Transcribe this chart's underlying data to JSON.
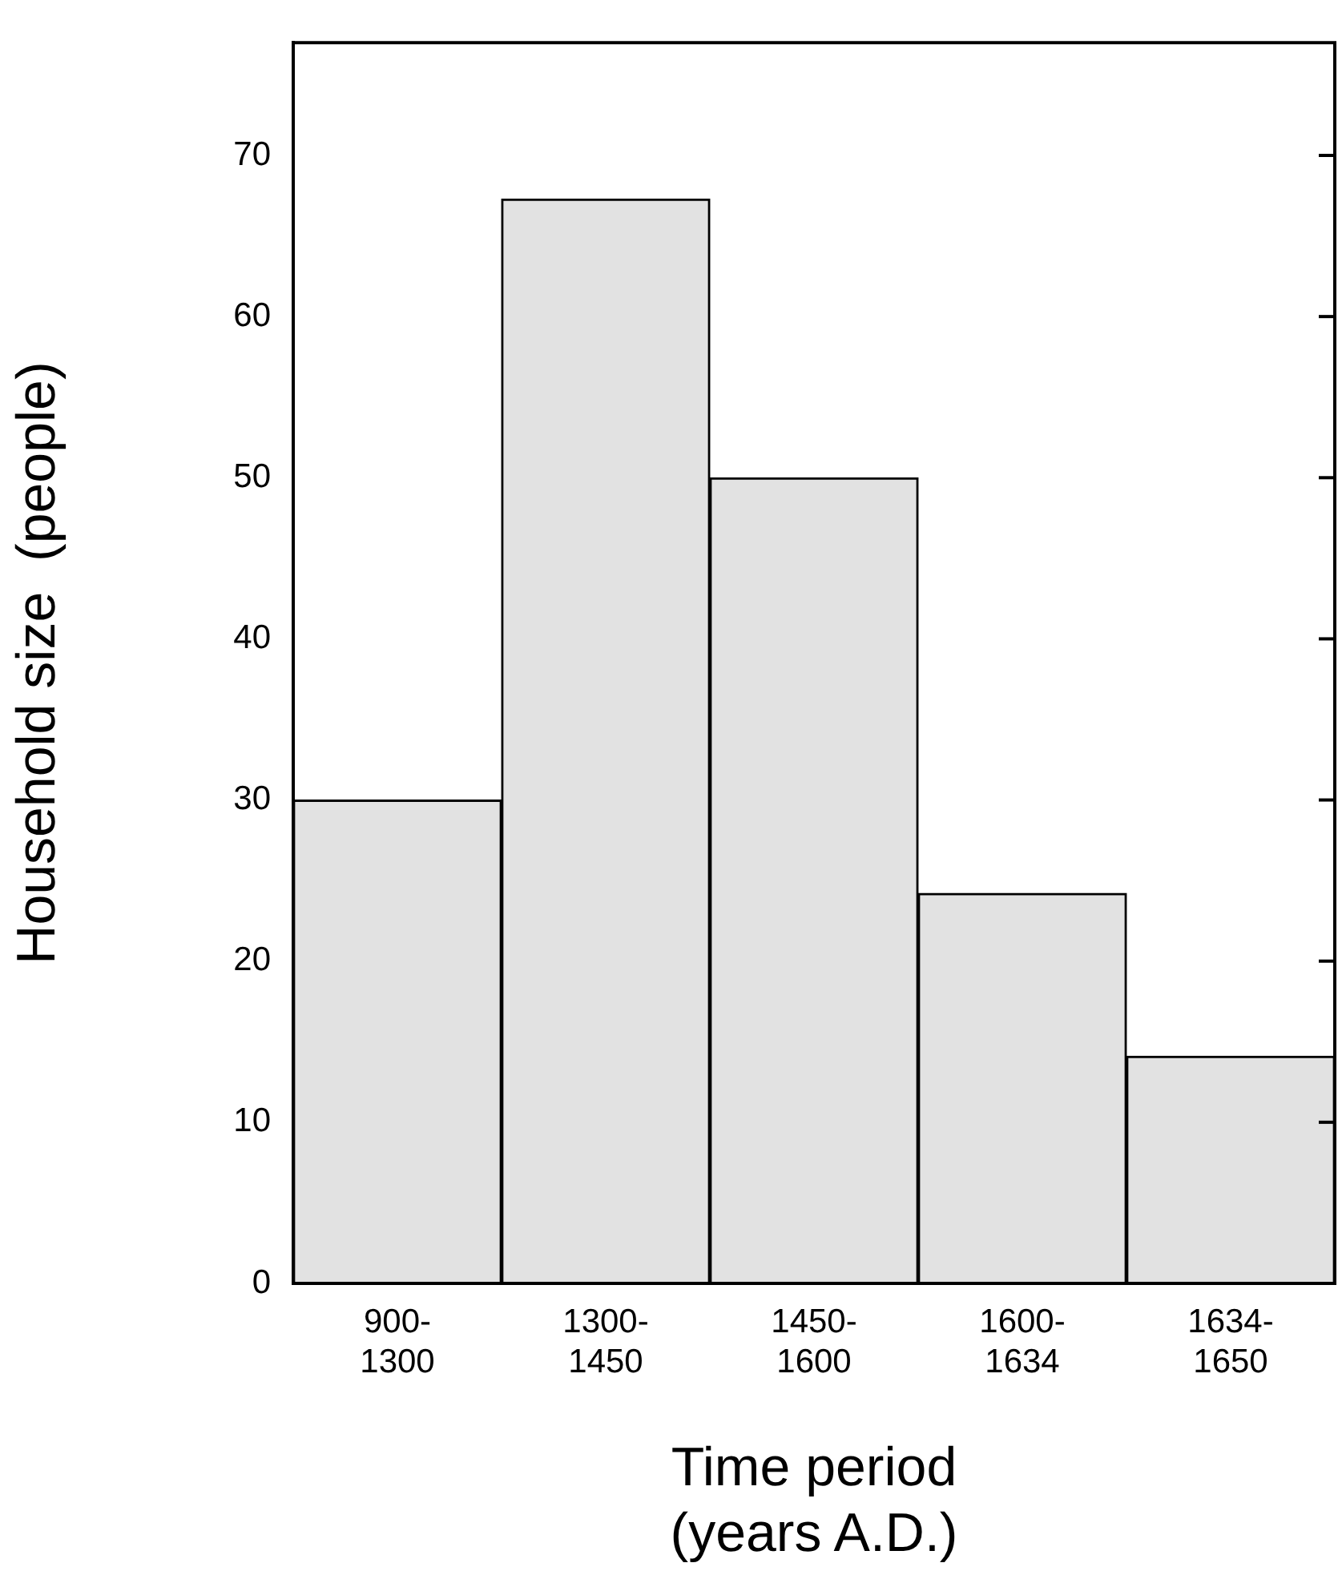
{
  "chart_data": {
    "type": "bar",
    "xlabel": "Time period (years A.D.)",
    "ylabel": "Household size  (people)",
    "categories": [
      "900-1300",
      "1300-1450",
      "1450-1600",
      "1600-1634",
      "1634-1650"
    ],
    "values": [
      30,
      67.3,
      50,
      24.2,
      14.1
    ],
    "color": "#e2e2e2",
    "ylim": [
      0,
      77
    ],
    "yticks": [
      0,
      10,
      20,
      30,
      40,
      50,
      60,
      70
    ],
    "grid": false,
    "legend": false
  }
}
